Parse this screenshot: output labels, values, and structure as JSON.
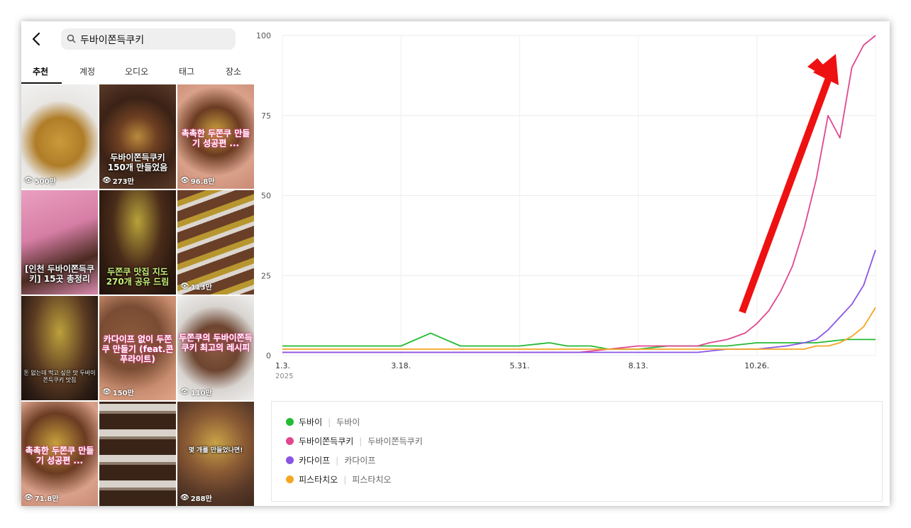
{
  "search": {
    "query": "두바이쫀득쿠키"
  },
  "tabs": [
    {
      "label": "추천"
    },
    {
      "label": "계정"
    },
    {
      "label": "오디오"
    },
    {
      "label": "태그"
    },
    {
      "label": "장소"
    }
  ],
  "thumbnails": [
    {
      "views": "500만",
      "caption": ""
    },
    {
      "views": "273만",
      "caption": "두바이쫀득쿠키 150개 만들었음"
    },
    {
      "views": "96.8만",
      "caption": "촉촉한 두쫀쿠 만들기 성공편 ..."
    },
    {
      "views": "",
      "caption": "[인천 두바이쫀득쿠키] 15곳 총정리"
    },
    {
      "views": "",
      "caption": "두쫀쿠 맛집 지도 270개 공유 드림"
    },
    {
      "views": "113만",
      "caption": ""
    },
    {
      "views": "",
      "caption": "돈 없는데 먹고 싶은 맛 두바이쫀득쿠키 맛집"
    },
    {
      "views": "150만",
      "caption": "카다이프 없이 두쫀쿠 만들기 (feat.콘푸라이트)"
    },
    {
      "views": "110만",
      "caption": "두쫀쿠의 두바이쫀득쿠키 최고의 레시피"
    },
    {
      "views": "71.8만",
      "caption": "촉촉한 두쫀쿠 만들기 성공편 ..."
    },
    {
      "views": "",
      "caption": ""
    },
    {
      "views": "288만",
      "caption": "몇 개를 만들었나면!"
    }
  ],
  "colors": {
    "dubai": "#22bb33",
    "cookie": "#e0478f",
    "kadaif": "#8a55e6",
    "pistachio": "#f5a623",
    "arrow": "#ee1111"
  },
  "chart_data": {
    "type": "line",
    "ylim": [
      0,
      100
    ],
    "yticks": [
      "0",
      "25",
      "50",
      "75",
      "100"
    ],
    "xticks": [
      "1.3.",
      "3.18.",
      "5.31.",
      "8.13.",
      "10.26."
    ],
    "year_label": "2025",
    "annotation": "red upward arrow indicating surge",
    "series": [
      {
        "name": "두바이",
        "term": "두바이",
        "color_key": "dubai",
        "x": [
          0,
          5,
          10,
          15,
          20,
          25,
          30,
          35,
          40,
          45,
          48,
          52,
          55,
          60,
          65,
          70,
          75,
          80,
          85,
          90,
          95,
          100
        ],
        "y": [
          3,
          3,
          3,
          3,
          3,
          7,
          3,
          3,
          3,
          4,
          3,
          3,
          2,
          2,
          3,
          3,
          3,
          4,
          4,
          4,
          5,
          5
        ]
      },
      {
        "name": "두바이쫀득쿠키",
        "term": "두바이쫀득쿠키",
        "color_key": "cookie",
        "x": [
          0,
          10,
          20,
          30,
          40,
          50,
          55,
          60,
          65,
          70,
          72,
          75,
          78,
          80,
          82,
          84,
          86,
          88,
          90,
          92,
          94,
          96,
          98,
          100
        ],
        "y": [
          1,
          1,
          1,
          1,
          1,
          1,
          2,
          3,
          3,
          3,
          4,
          5,
          7,
          10,
          14,
          20,
          28,
          40,
          55,
          75,
          68,
          90,
          97,
          100
        ]
      },
      {
        "name": "카다이프",
        "term": "카다이프",
        "color_key": "kadaif",
        "x": [
          0,
          20,
          40,
          60,
          70,
          75,
          80,
          85,
          88,
          90,
          92,
          94,
          96,
          98,
          100
        ],
        "y": [
          1,
          1,
          1,
          1,
          1,
          2,
          2,
          3,
          4,
          5,
          8,
          12,
          16,
          22,
          33
        ]
      },
      {
        "name": "피스타치오",
        "term": "피스타치오",
        "color_key": "pistachio",
        "x": [
          0,
          20,
          40,
          60,
          70,
          80,
          85,
          88,
          90,
          92,
          94,
          96,
          98,
          100
        ],
        "y": [
          2,
          2,
          2,
          2,
          2,
          2,
          2,
          2,
          3,
          3,
          4,
          6,
          9,
          15
        ]
      }
    ]
  }
}
